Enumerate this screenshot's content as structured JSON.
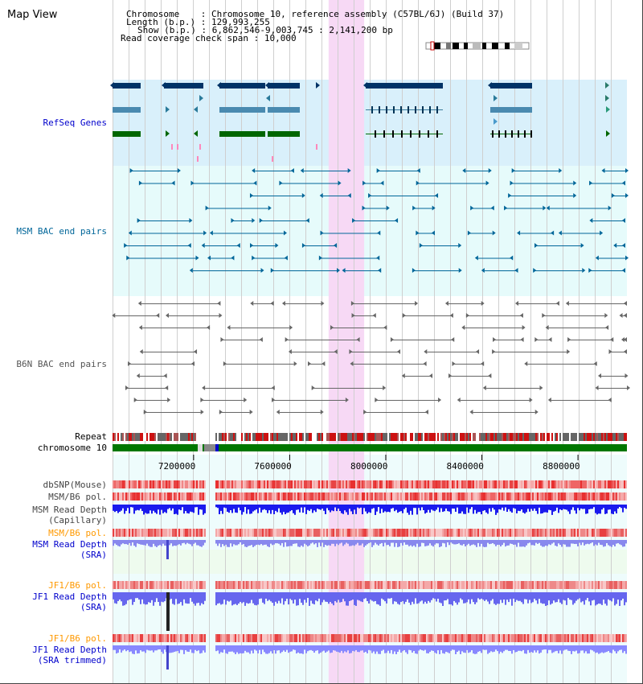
{
  "title": "Map View",
  "header": {
    "chromosome_key": "Chromosome",
    "chromosome_val": "Chromosome 10, reference assembly (C57BL/6J) (Build 37)",
    "length_key": "Length (b.p.)",
    "length_val": "129,993,255",
    "show_key": "Show (b.p.)",
    "show_val": "6,862,546-9,003,745 : 2,141,200 bp",
    "coverage_key": "Read coverage check span",
    "coverage_val": "10,000"
  },
  "tracks": {
    "refseq": "RefSeq Genes",
    "msm_bac": "MSM BAC end pairs",
    "b6n_bac": "B6N BAC end pairs",
    "repeat": "Repeat",
    "chromosome": "chromosome 10",
    "dbsnp": "dbSNP(Mouse)",
    "msm_b6_pol": "MSM/B6 pol.",
    "msm_depth_cap_1": "MSM Read Depth",
    "msm_depth_cap_2": "(Capillary)",
    "msm_b6_pol_sra": "MSM/B6 pol.",
    "msm_depth_sra_1": "MSM Read Depth",
    "msm_depth_sra_2": "(SRA)",
    "jf1_b6_pol": "JF1/B6 pol.",
    "jf1_depth_1": "JF1 Read Depth",
    "jf1_depth_2": "(SRA)",
    "jf1_b6_pol_trim": "JF1/B6 pol.",
    "jf1_depth_trim_1": "JF1 Read Depth",
    "jf1_depth_trim_2": "(SRA trimmed)"
  },
  "axis": {
    "ticks": [
      "7200000",
      "7600000",
      "8000000",
      "8400000",
      "8800000"
    ],
    "tick_values": [
      7200000,
      7600000,
      8000000,
      8400000,
      8800000
    ],
    "range": [
      6862546,
      9003745
    ]
  },
  "highlight_range": [
    7762000,
    7910000
  ],
  "colors": {
    "label_default": "#000000",
    "label_refseq": "#0000cc",
    "label_msm": "#006699",
    "label_b6n": "#555555",
    "label_pol_orange": "#ff9900",
    "label_depth_blue": "#0000cc",
    "refseq_band": "#d9f0fb",
    "bac_band": "#e6fbfb",
    "highlight": "#f7d9f5",
    "gene_dark": "#003366",
    "gene_mid": "#4a8ab0",
    "gene_green": "#006600",
    "msm_pair": "#006699",
    "b6n_pair": "#666666",
    "chrom_green": "#007700"
  }
}
